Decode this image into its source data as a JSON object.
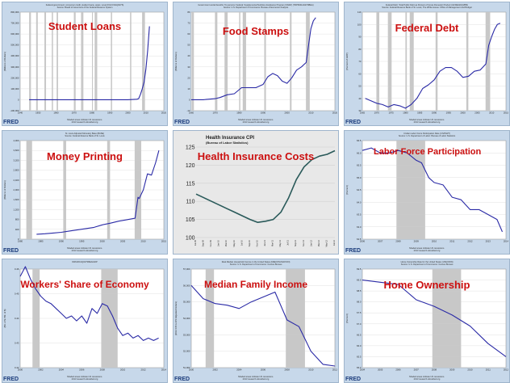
{
  "panels": [
    {
      "key": "student",
      "title": "Student Loans",
      "header": "Federal government; consumer credit, student loans, asset, Level (FGCCSAQ027S)\nSource: Board of Governors of the Federal Reserve System",
      "footer": "Shaded areas indicate US recessions.\n2013 research.stlouisfed.org",
      "fred": "FRED",
      "chart_data": {
        "type": "line",
        "x": [
          1945,
          1950,
          1955,
          1960,
          1965,
          1970,
          1975,
          1980,
          1985,
          1990,
          1995,
          2000,
          2005,
          2006,
          2007,
          2008,
          2009,
          2010,
          2011,
          2012
        ],
        "y": [
          0,
          0,
          0,
          0,
          0,
          0,
          0,
          0,
          0,
          0,
          0,
          0,
          5000,
          10000,
          50000,
          100000,
          160000,
          280000,
          450000,
          670000
        ],
        "xlim": [
          1940,
          2020
        ],
        "ylim": [
          -100000,
          800000
        ],
        "xticks": [
          "1940",
          "1950",
          "1960",
          "1970",
          "1980",
          "1990",
          "2000",
          "2010",
          "2020"
        ],
        "yticks": [
          "-100,000",
          "0",
          "100,000",
          "200,000",
          "300,000",
          "400,000",
          "500,000",
          "600,000",
          "700,000",
          "800,000"
        ],
        "ylabel": "(Millions of Dollars)",
        "recessions": [
          [
            1945,
            1946
          ],
          [
            1948.9,
            1949.8
          ],
          [
            1953.5,
            1954.4
          ],
          [
            1957.6,
            1958.3
          ],
          [
            1960.3,
            1961.1
          ],
          [
            1969.9,
            1970.9
          ],
          [
            1973.9,
            1975.2
          ],
          [
            1980,
            1980.5
          ],
          [
            1981.5,
            1982.9
          ],
          [
            1990.5,
            1991.2
          ],
          [
            2001.2,
            2001.9
          ],
          [
            2007.9,
            2009.5
          ]
        ]
      }
    },
    {
      "key": "food",
      "title": "Food Stamps",
      "header": "Government social benefits: To persons: Federal: Supplemental Nutrition Assistance Program (SNAP) (TRP6001A027NBEA)\nSource: U.S. Department of Commerce: Bureau of Economic Analysis",
      "footer": "Shaded areas indicate US recessions.\n2013 research.stlouisfed.org",
      "fred": "FRED",
      "chart_data": {
        "type": "line",
        "x": [
          1960,
          1965,
          1970,
          1972,
          1975,
          1978,
          1981,
          1984,
          1987,
          1990,
          1992,
          1994,
          1996,
          1998,
          2000,
          2002,
          2004,
          2006,
          2008,
          2009,
          2010,
          2011,
          2012
        ],
        "y": [
          0,
          0,
          1,
          2,
          4.5,
          5.5,
          11,
          11,
          11,
          14,
          21,
          24,
          22,
          17,
          15,
          20,
          27,
          30,
          34,
          50,
          65,
          72,
          75
        ],
        "xlim": [
          1960,
          2020
        ],
        "ylim": [
          -10,
          80
        ],
        "xticks": [
          "1960",
          "1970",
          "1980",
          "1990",
          "2000",
          "2010",
          "2020"
        ],
        "yticks": [
          "-10",
          "0",
          "10",
          "20",
          "30",
          "40",
          "50",
          "60",
          "70",
          "80"
        ],
        "ylabel": "(Billions of Dollars)",
        "recessions": [
          [
            1960.3,
            1961.1
          ],
          [
            1969.9,
            1970.9
          ],
          [
            1973.9,
            1975.2
          ],
          [
            1980,
            1980.5
          ],
          [
            1981.5,
            1982.9
          ],
          [
            1990.5,
            1991.2
          ],
          [
            2001.2,
            2001.9
          ],
          [
            2007.9,
            2009.5
          ]
        ]
      }
    },
    {
      "key": "debt",
      "title": "Federal Debt",
      "header": "Federal Debt: Total Public Debt as Percent of Gross Domestic Product (GFDEGDQ188S)\nSource: Federal Reserve Bank of St. Louis; The White House: Office of Management and Budget",
      "footer": "Shaded areas indicate US recessions.\n2013 research.stlouisfed.org",
      "fred": "FRED",
      "chart_data": {
        "type": "line",
        "x": [
          1966,
          1968,
          1970,
          1972,
          1974,
          1976,
          1978,
          1980,
          1982,
          1984,
          1986,
          1988,
          1990,
          1992,
          1994,
          1996,
          1998,
          2000,
          2002,
          2004,
          2006,
          2008,
          2009,
          2010,
          2011,
          2012,
          2013
        ],
        "y": [
          40,
          38,
          36,
          35,
          33,
          35,
          34,
          32,
          35,
          40,
          48,
          51,
          55,
          62,
          65,
          65,
          62,
          57,
          58,
          62,
          63,
          68,
          83,
          90,
          96,
          100,
          101
        ],
        "xlim": [
          1965,
          2015
        ],
        "ylim": [
          30,
          110
        ],
        "xticks": [
          "1965",
          "1970",
          "1975",
          "1980",
          "1985",
          "1990",
          "1995",
          "2000",
          "2005",
          "2010",
          "2015"
        ],
        "yticks": [
          "30",
          "40",
          "50",
          "60",
          "70",
          "80",
          "90",
          "100",
          "110"
        ],
        "ylabel": "(Percent of GDP)",
        "recessions": [
          [
            1969.9,
            1970.9
          ],
          [
            1973.9,
            1975.2
          ],
          [
            1980,
            1980.5
          ],
          [
            1981.5,
            1982.9
          ],
          [
            1990.5,
            1991.2
          ],
          [
            2001.2,
            2001.9
          ],
          [
            2007.9,
            2009.5
          ]
        ]
      }
    },
    {
      "key": "money",
      "title": "Money Printing",
      "header": "St. Louis Adjusted Monetary Base (BASE)\nSource: Federal Reserve Bank of St. Louis",
      "footer": "Shaded areas indicate US recessions.\n2013 research.stlouisfed.org",
      "fred": "FRED",
      "chart_data": {
        "type": "line",
        "x": [
          1984,
          1986,
          1988,
          1990,
          1992,
          1994,
          1996,
          1998,
          2000,
          2002,
          2004,
          2006,
          2008,
          2008.7,
          2009,
          2010,
          2011,
          2012,
          2013,
          2013.8
        ],
        "y": [
          200,
          220,
          250,
          280,
          330,
          380,
          430,
          480,
          580,
          650,
          730,
          790,
          850,
          1700,
          1650,
          2000,
          2650,
          2600,
          3100,
          3600
        ],
        "xlim": [
          1980,
          2015
        ],
        "ylim": [
          0,
          4000
        ],
        "xticks": [
          "1980",
          "1985",
          "1990",
          "1995",
          "2000",
          "2005",
          "2010",
          "2015"
        ],
        "yticks": [
          "0",
          "400",
          "800",
          "1,200",
          "1,600",
          "2,000",
          "2,400",
          "2,800",
          "3,200",
          "3,600",
          "4,000"
        ],
        "ylabel": "(Billions of Dollars)",
        "recessions": [
          [
            1981.5,
            1982.9
          ],
          [
            1990.5,
            1991.2
          ],
          [
            2001.2,
            2001.9
          ],
          [
            2007.9,
            2009.5
          ]
        ]
      }
    },
    {
      "key": "health",
      "title": "Health Insurance Costs",
      "chart_title": "Health Insurance CPI",
      "chart_subtitle": "(Bureau of Labor Statistics)",
      "chart_data": {
        "type": "line",
        "x": [
          0,
          2,
          4,
          6,
          8,
          10,
          12,
          14,
          16,
          18,
          20,
          22,
          24,
          26,
          28,
          30,
          32,
          34,
          36
        ],
        "y": [
          112,
          111,
          110,
          109,
          108,
          107,
          106,
          105,
          104.2,
          104.5,
          105,
          107,
          111,
          116,
          119.5,
          121.5,
          122.5,
          123,
          124
        ],
        "xlim": [
          0,
          36
        ],
        "ylim": [
          100,
          125
        ],
        "yticks": [
          "100",
          "105",
          "110",
          "115",
          "120",
          "125"
        ],
        "xticks": [
          "Jul-09",
          "Sep-09",
          "Nov-09",
          "Jan-10",
          "Mar-10",
          "May-10",
          "Jul-10",
          "Sep-10",
          "Nov-10",
          "Jan-11",
          "Mar-11",
          "May-11",
          "Jul-11",
          "Sep-11",
          "Nov-11",
          "Jan-12",
          "Mar-12",
          "May-12",
          "Jul-12"
        ]
      }
    },
    {
      "key": "labor",
      "title": "Labor Force Participation",
      "header": "Civilian Labor Force Participation Rate (CIVPART)\nSource: U.S. Department of Labor: Bureau of Labor Statistics",
      "footer": "Shaded areas indicate US recessions.\n2013 research.stlouisfed.org",
      "fred": "FRED",
      "chart_data": {
        "type": "line",
        "x": [
          2006,
          2006.5,
          2007,
          2007.5,
          2008,
          2008.5,
          2009,
          2009.3,
          2009.7,
          2010,
          2010.5,
          2011,
          2011.5,
          2012,
          2012.5,
          2013,
          2013.5,
          2013.8
        ],
        "y": [
          66.1,
          66.2,
          66.0,
          66.0,
          66.1,
          66.0,
          65.7,
          65.6,
          65.0,
          64.8,
          64.7,
          64.2,
          64.1,
          63.7,
          63.7,
          63.5,
          63.3,
          62.8
        ],
        "xlim": [
          2006,
          2014
        ],
        "ylim": [
          62.5,
          66.5
        ],
        "xticks": [
          "2006",
          "2007",
          "2008",
          "2009",
          "2010",
          "2011",
          "2012",
          "2013",
          "2014"
        ],
        "yticks": [
          "62.5",
          "63.0",
          "63.5",
          "64.0",
          "64.5",
          "65.0",
          "65.5",
          "66.0",
          "66.5"
        ],
        "ylabel": "(Percent)",
        "recessions": [
          [
            2007.9,
            2009.5
          ]
        ]
      }
    },
    {
      "key": "workers",
      "title": "Workers' Share of Economy",
      "header": "W461RC1Q027SBEA/GDP",
      "footer": "Shaded areas indicate US recessions.\n2013 research.stlouisfed.org",
      "fred": "FRED",
      "chart_data": {
        "type": "line",
        "x": [
          2000,
          2000.5,
          2001,
          2001.5,
          2002,
          2002.5,
          2003,
          2003.5,
          2004,
          2004.5,
          2005,
          2005.5,
          2006,
          2006.5,
          2007,
          2007.5,
          2008,
          2008.5,
          2009,
          2009.5,
          2010,
          2010.5,
          2011,
          2011.5,
          2012,
          2012.5,
          2013,
          2013.5
        ],
        "y": [
          0.457,
          0.461,
          0.456,
          0.452,
          0.449,
          0.447,
          0.446,
          0.444,
          0.442,
          0.44,
          0.441,
          0.439,
          0.441,
          0.438,
          0.444,
          0.442,
          0.446,
          0.445,
          0.441,
          0.436,
          0.433,
          0.434,
          0.432,
          0.433,
          0.431,
          0.432,
          0.431,
          0.432
        ],
        "xlim": [
          2000,
          2014
        ],
        "ylim": [
          0.42,
          0.46
        ],
        "xticks": [
          "2000",
          "2002",
          "2004",
          "2006",
          "2008",
          "2010",
          "2012",
          "2014"
        ],
        "yticks": [
          "0.42",
          "0.43",
          "0.44",
          "0.45",
          "0.46"
        ],
        "ylabel": "(Bil. of $ / Bil. of $)",
        "recessions": [
          [
            2001.2,
            2001.9
          ],
          [
            2007.9,
            2009.5
          ]
        ]
      }
    },
    {
      "key": "income",
      "title": "Median Family Income",
      "header": "Real Median Household Income in the United States (MEHOINUSA672N)\nSource: U.S. Department of Commerce: Census Bureau",
      "footer": "Shaded areas indicate US recessions.\n2013 research.stlouisfed.org",
      "fred": "FRED",
      "chart_data": {
        "type": "line",
        "x": [
          2000,
          2001,
          2002,
          2003,
          2004,
          2005,
          2006,
          2007,
          2008,
          2009,
          2010,
          2011,
          2012
        ],
        "y": [
          56000,
          55200,
          54900,
          54800,
          54600,
          55000,
          55300,
          55600,
          53900,
          53500,
          52000,
          51200,
          51100
        ],
        "xlim": [
          2000,
          2012
        ],
        "ylim": [
          51000,
          57000
        ],
        "xticks": [
          "2000",
          "2002",
          "2004",
          "2006",
          "2008",
          "2010",
          "2012"
        ],
        "yticks": [
          "51,000",
          "52,000",
          "53,000",
          "54,000",
          "55,000",
          "56,000",
          "57,000"
        ],
        "ylabel": "(2012 CPI-U-RS Adjusted Dollars)",
        "recessions": [
          [
            2001.2,
            2001.9
          ],
          [
            2007.9,
            2009.5
          ]
        ]
      }
    },
    {
      "key": "home",
      "title": "Home Ownership",
      "header": "Home Ownership Rate for the United States (USHOWN)\nSource: U.S. Department of Commerce: Census Bureau",
      "footer": "Shaded areas indicate US recessions.\n2013 research.stlouisfed.org",
      "fred": "FRED",
      "chart_data": {
        "type": "line",
        "x": [
          2004,
          2005,
          2006,
          2007,
          2008,
          2009,
          2010,
          2011,
          2012
        ],
        "y": [
          69.0,
          68.9,
          68.8,
          68.1,
          67.8,
          67.4,
          66.9,
          66.1,
          65.5
        ],
        "xlim": [
          2004,
          2012
        ],
        "ylim": [
          65.0,
          69.5
        ],
        "xticks": [
          "2004",
          "2005",
          "2006",
          "2007",
          "2008",
          "2009",
          "2010",
          "2011",
          "2012"
        ],
        "yticks": [
          "65.0",
          "65.5",
          "66.0",
          "66.5",
          "67.0",
          "67.5",
          "68.0",
          "68.5",
          "69.0",
          "69.5"
        ],
        "ylabel": "(Percent)",
        "recessions": [
          [
            2007.9,
            2009.5
          ]
        ]
      }
    }
  ],
  "colors": {
    "panel_bg": "#c7d8ea",
    "plot_bg": "#ffffff",
    "line": "#2a2aa6",
    "recession": "#c8c8c8",
    "title_red": "#cc1010",
    "health_line": "#2a5a5a"
  }
}
